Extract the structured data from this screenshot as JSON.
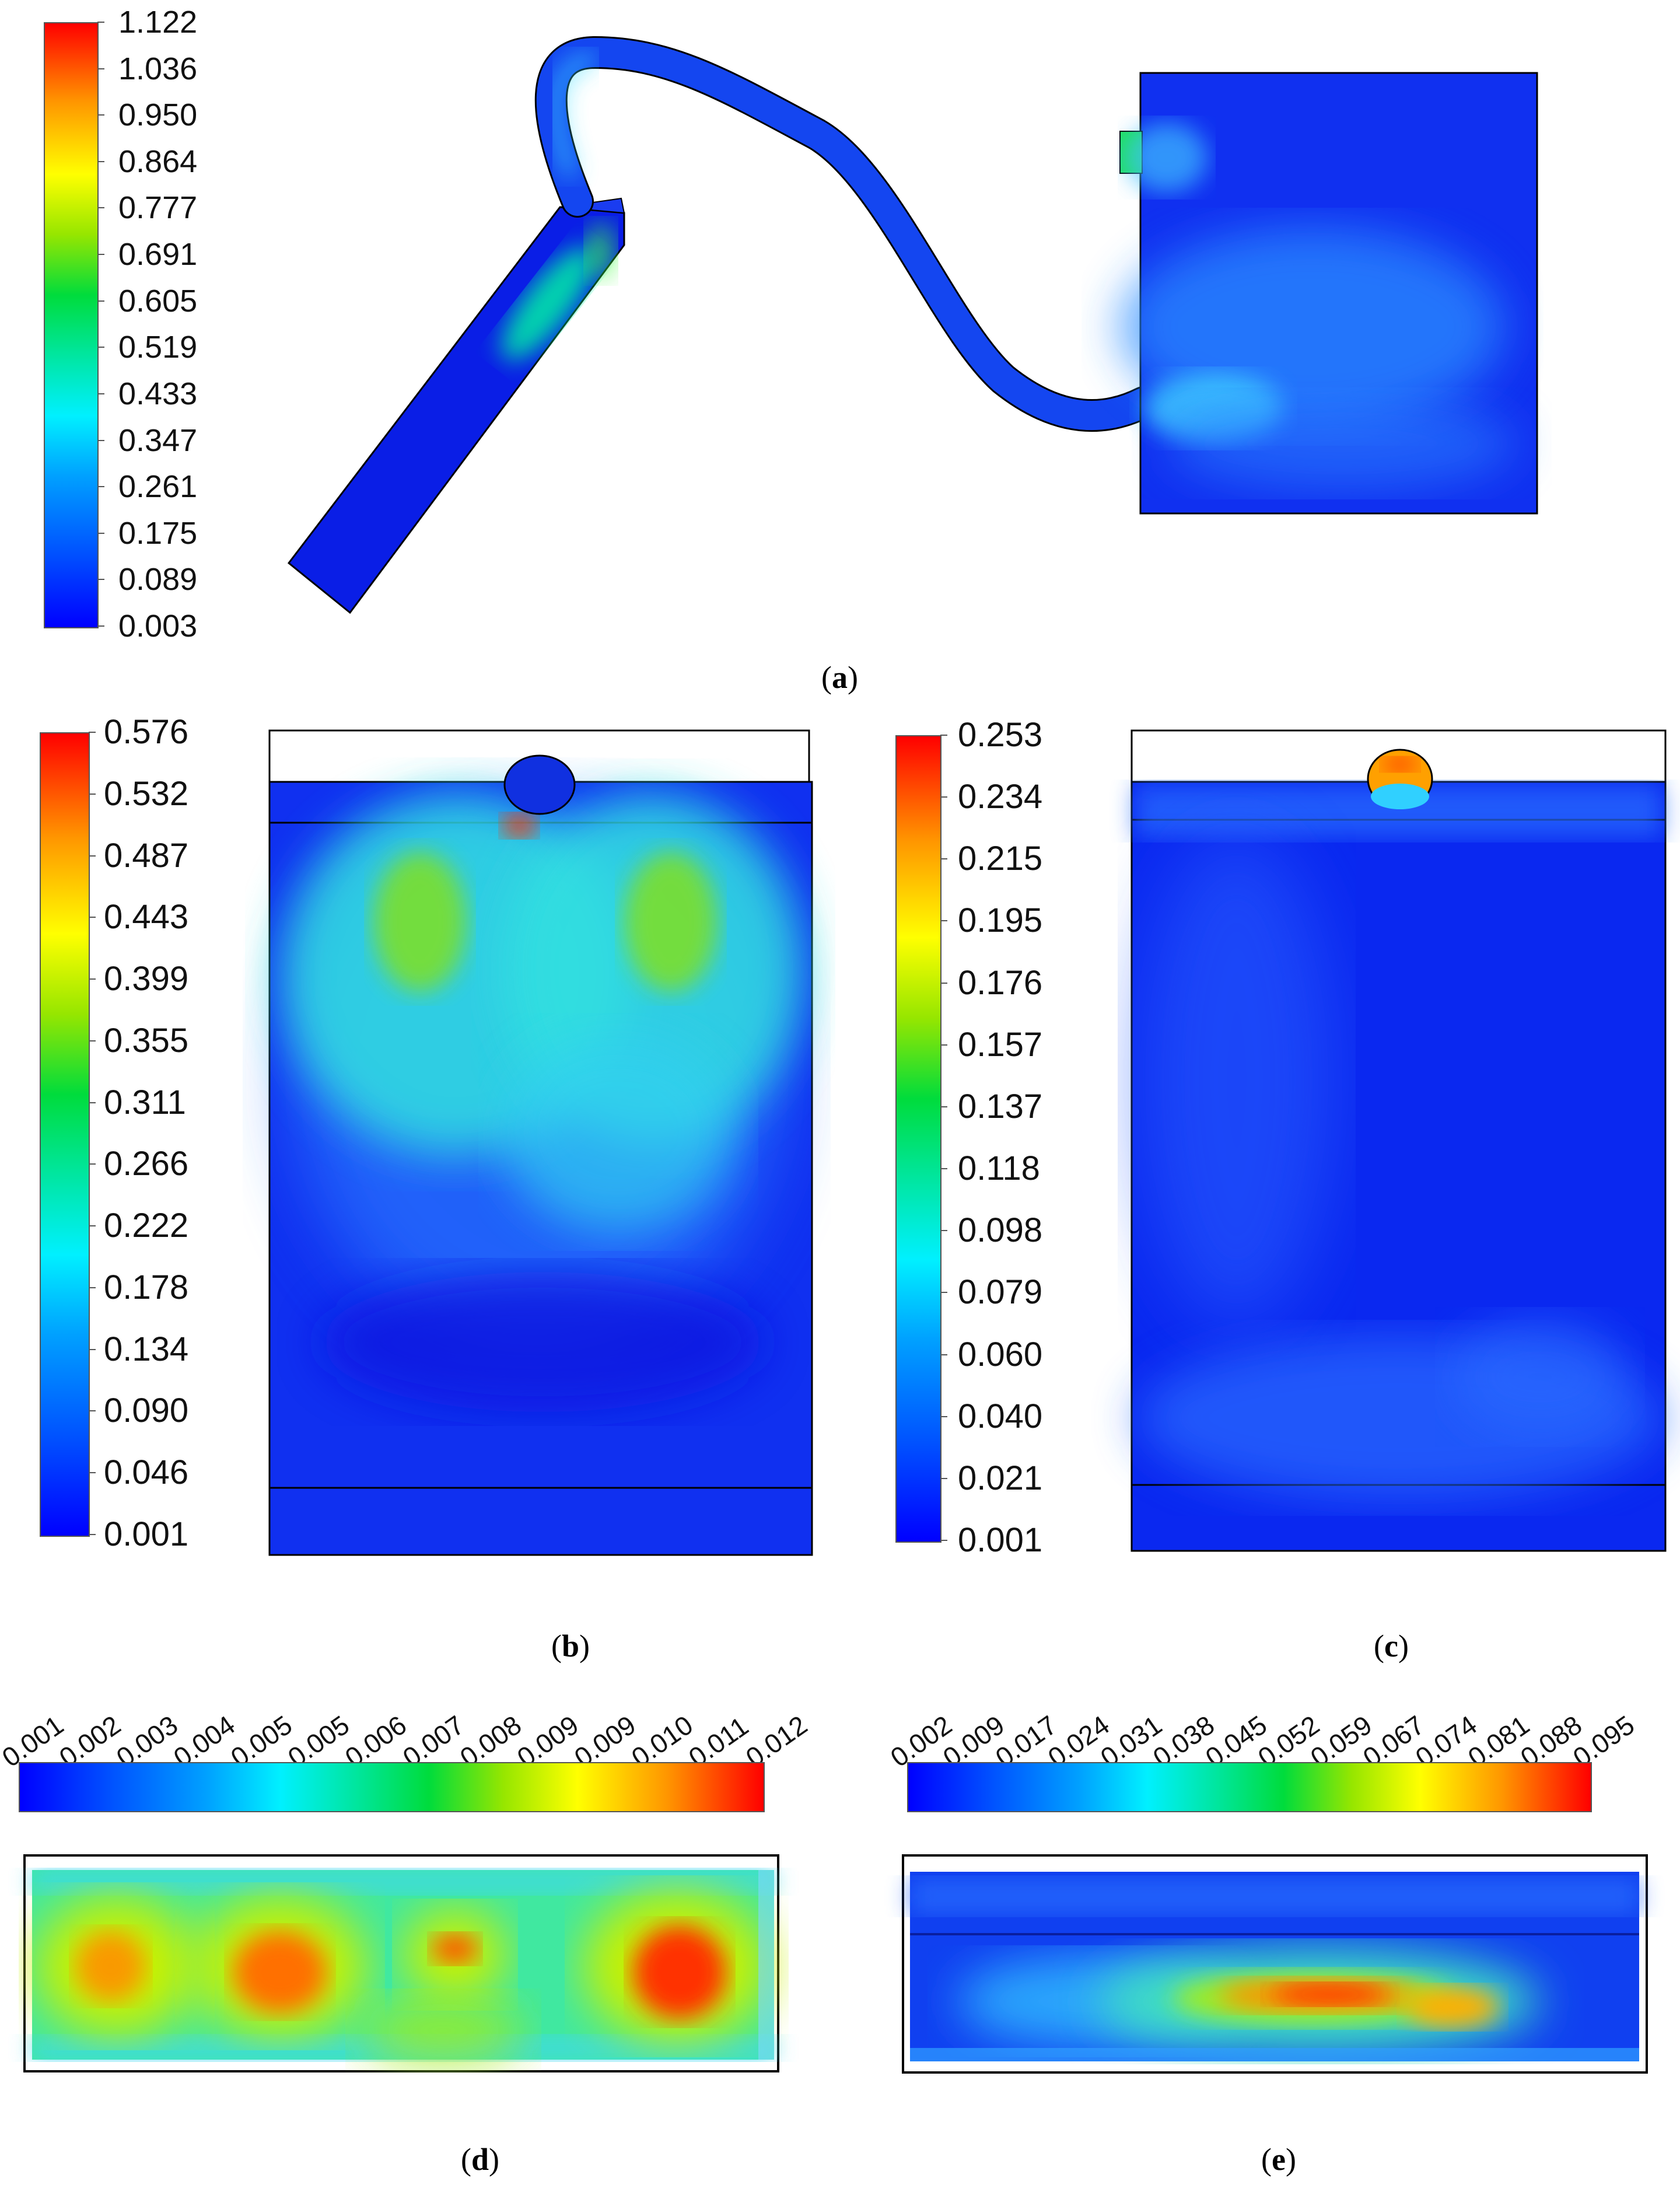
{
  "panels": {
    "a": {
      "label": "a",
      "colorbar_ticks": [
        "1.122",
        "1.036",
        "0.950",
        "0.864",
        "0.777",
        "0.691",
        "0.605",
        "0.519",
        "0.433",
        "0.347",
        "0.261",
        "0.175",
        "0.089",
        "0.003"
      ]
    },
    "b": {
      "label": "b",
      "colorbar_ticks": [
        "0.576",
        "0.532",
        "0.487",
        "0.443",
        "0.399",
        "0.355",
        "0.311",
        "0.266",
        "0.222",
        "0.178",
        "0.134",
        "0.090",
        "0.046",
        "0.001"
      ]
    },
    "c": {
      "label": "c",
      "colorbar_ticks": [
        "0.253",
        "0.234",
        "0.215",
        "0.195",
        "0.176",
        "0.157",
        "0.137",
        "0.118",
        "0.098",
        "0.079",
        "0.060",
        "0.040",
        "0.021",
        "0.001"
      ]
    },
    "d": {
      "label": "d",
      "colorbar_ticks": [
        "0.001",
        "0.002",
        "0.003",
        "0.004",
        "0.005",
        "0.005",
        "0.006",
        "0.007",
        "0.008",
        "0.009",
        "0.009",
        "0.010",
        "0.011",
        "0.012"
      ]
    },
    "e": {
      "label": "e",
      "colorbar_ticks": [
        "0.002",
        "0.009",
        "0.017",
        "0.024",
        "0.031",
        "0.038",
        "0.045",
        "0.052",
        "0.059",
        "0.067",
        "0.074",
        "0.081",
        "0.088",
        "0.095"
      ]
    }
  },
  "colormap": [
    "#0000ff",
    "#0060ff",
    "#00c8ff",
    "#00e6c8",
    "#00dc50",
    "#8cdc00",
    "#ffff00",
    "#ffb400",
    "#ff6400",
    "#ff0000"
  ]
}
